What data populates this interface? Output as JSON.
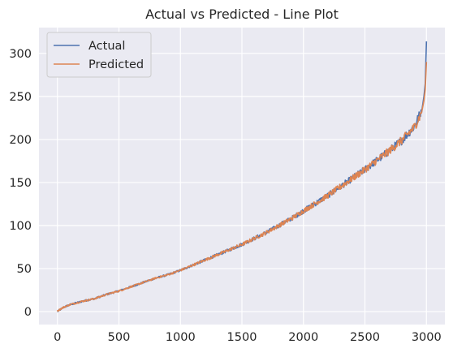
{
  "chart_data": {
    "type": "line",
    "title": "Actual vs Predicted - Line Plot",
    "xlabel": "",
    "ylabel": "",
    "xlim": [
      -150,
      3150
    ],
    "ylim": [
      -15,
      330
    ],
    "xticks": [
      0,
      500,
      1000,
      1500,
      2000,
      2500,
      3000
    ],
    "yticks": [
      0,
      50,
      100,
      150,
      200,
      250,
      300
    ],
    "xtick_labels": [
      "0",
      "500",
      "1000",
      "1500",
      "2000",
      "2500",
      "3000"
    ],
    "ytick_labels": [
      "0",
      "50",
      "100",
      "150",
      "200",
      "250",
      "300"
    ],
    "grid": true,
    "legend_position": "top-left",
    "series": [
      {
        "name": "Actual",
        "color": "#4c72b0",
        "x": [
          0,
          50,
          100,
          200,
          300,
          400,
          500,
          600,
          700,
          800,
          900,
          1000,
          1100,
          1200,
          1300,
          1400,
          1500,
          1600,
          1700,
          1800,
          1900,
          2000,
          2100,
          2200,
          2300,
          2400,
          2500,
          2600,
          2700,
          2800,
          2900,
          2950,
          2980,
          2990,
          3000
        ],
        "y": [
          0,
          5,
          8,
          12,
          15,
          20,
          24,
          29,
          34,
          39,
          43,
          48,
          54,
          60,
          66,
          72,
          78,
          85,
          92,
          100,
          108,
          117,
          126,
          135,
          145,
          155,
          165,
          176,
          187,
          199,
          215,
          230,
          250,
          265,
          314
        ]
      },
      {
        "name": "Predicted",
        "color": "#dd8452",
        "x": [
          0,
          50,
          100,
          200,
          300,
          400,
          500,
          600,
          700,
          800,
          900,
          1000,
          1100,
          1200,
          1300,
          1400,
          1500,
          1600,
          1700,
          1800,
          1900,
          2000,
          2100,
          2200,
          2300,
          2400,
          2500,
          2600,
          2700,
          2800,
          2900,
          2950,
          2980,
          2990,
          3000
        ],
        "y": [
          1,
          5,
          8,
          12,
          15,
          20,
          24,
          29,
          34,
          39,
          43,
          48,
          54,
          60,
          66,
          72,
          78,
          85,
          92,
          100,
          108,
          117,
          126,
          135,
          145,
          155,
          165,
          176,
          187,
          199,
          214,
          228,
          245,
          258,
          290
        ]
      }
    ]
  }
}
